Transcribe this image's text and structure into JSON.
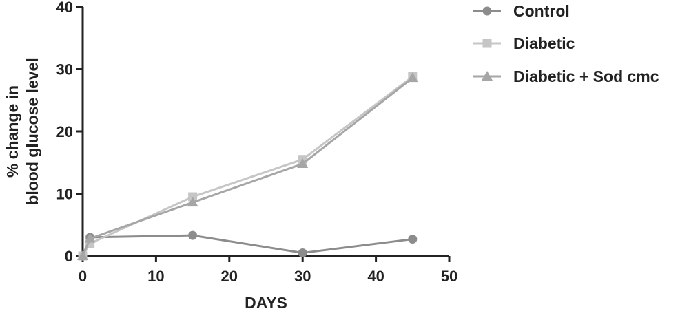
{
  "chart_data": {
    "type": "line",
    "xlabel": "DAYS",
    "ylabel_lines": [
      "% change in",
      "blood glucose level"
    ],
    "xlim": [
      0,
      50
    ],
    "ylim": [
      0,
      40
    ],
    "x_ticks": [
      "0",
      "10",
      "20",
      "30",
      "40",
      "50"
    ],
    "y_ticks": [
      "0",
      "10",
      "20",
      "30",
      "40"
    ],
    "grid": false,
    "legend_position": "top-right",
    "series": [
      {
        "name": "Control",
        "marker": "circle",
        "color": "#8c8c8c",
        "x": [
          0,
          1,
          15,
          30,
          45
        ],
        "y": [
          0,
          3.0,
          3.3,
          0.5,
          2.7
        ]
      },
      {
        "name": "Diabetic",
        "marker": "square",
        "color": "#c6c6c6",
        "x": [
          0,
          1,
          15,
          30,
          45
        ],
        "y": [
          0,
          2.0,
          9.5,
          15.5,
          28.8
        ]
      },
      {
        "name": "Diabetic + Sod cmc",
        "marker": "triangle",
        "color": "#a6a6a6",
        "x": [
          0,
          1,
          15,
          30,
          45
        ],
        "y": [
          0,
          2.8,
          8.6,
          14.8,
          28.6
        ]
      }
    ]
  }
}
